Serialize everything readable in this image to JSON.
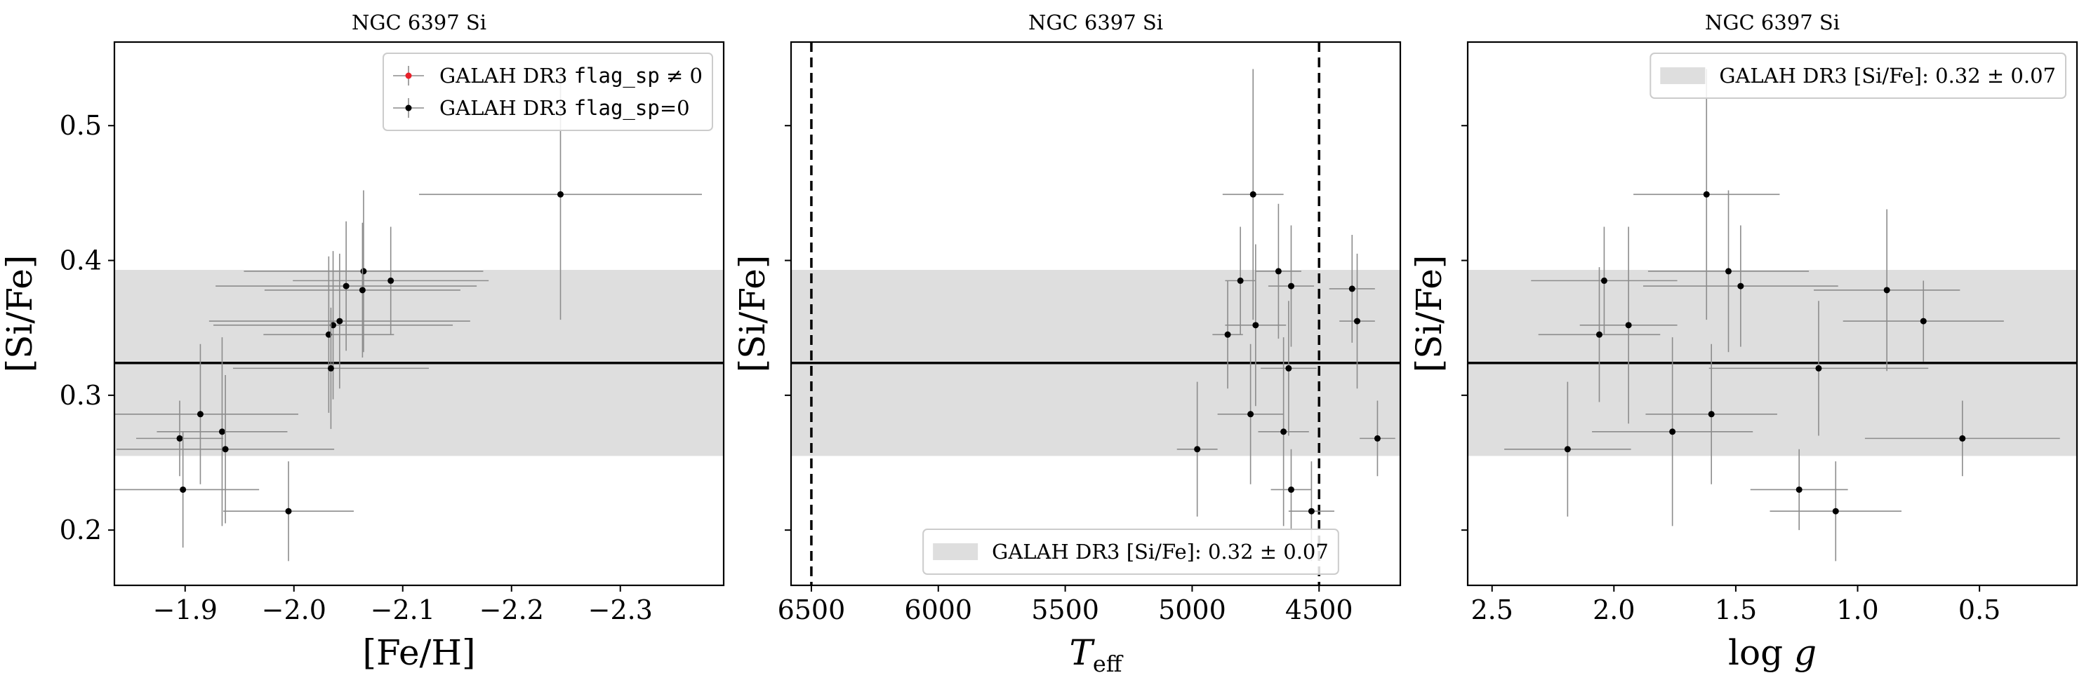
{
  "colors": {
    "band": "#dedede",
    "points": "#000000",
    "errorbars": "#8c8c8c",
    "flagged": "#e8202a"
  },
  "chart_data": [
    {
      "type": "scatter",
      "title": "NGC 6397 Si",
      "xlabel": "[Fe/H]",
      "ylabel": "[Si/Fe]",
      "xlim": [
        -1.835,
        -2.395
      ],
      "ylim": [
        0.159,
        0.562
      ],
      "xticks": [
        -1.9,
        -2.0,
        -2.1,
        -2.2,
        -2.3
      ],
      "xtick_labels": [
        "−1.9",
        "−2.0",
        "−2.1",
        "−2.2",
        "−2.3"
      ],
      "yticks": [
        0.2,
        0.3,
        0.4,
        0.5
      ],
      "ytick_labels": [
        "0.2",
        "0.3",
        "0.4",
        "0.5"
      ],
      "show_ytick_labels": true,
      "mean_line": 0.324,
      "band": [
        0.255,
        0.393
      ],
      "vlines": [],
      "legend": {
        "position": "top-right",
        "entries": [
          {
            "marker": "flagged",
            "parts": [
              [
                "GALAH DR3 ",
                "serif"
              ],
              [
                "flag_sp",
                "mono"
              ],
              [
                " ≠ 0",
                "serif"
              ]
            ]
          },
          {
            "marker": "point",
            "parts": [
              [
                "GALAH DR3 ",
                "serif"
              ],
              [
                "flag_sp",
                "mono"
              ],
              [
                "=0",
                "serif"
              ]
            ]
          }
        ]
      },
      "series": [
        {
          "name": "GALAH DR3 flag_sp=0",
          "points": [
            {
              "x": -2.245,
              "y": 0.449,
              "xerr": 0.13,
              "yerr": 0.093
            },
            {
              "x": -2.064,
              "y": 0.392,
              "xerr": 0.11,
              "yerr": 0.06
            },
            {
              "x": -2.089,
              "y": 0.385,
              "xerr": 0.09,
              "yerr": 0.04
            },
            {
              "x": -2.048,
              "y": 0.381,
              "xerr": 0.12,
              "yerr": 0.048
            },
            {
              "x": -2.063,
              "y": 0.378,
              "xerr": 0.09,
              "yerr": 0.05
            },
            {
              "x": -2.042,
              "y": 0.355,
              "xerr": 0.12,
              "yerr": 0.05
            },
            {
              "x": -2.036,
              "y": 0.352,
              "xerr": 0.11,
              "yerr": 0.055
            },
            {
              "x": -2.032,
              "y": 0.345,
              "xerr": 0.06,
              "yerr": 0.058
            },
            {
              "x": -2.034,
              "y": 0.32,
              "xerr": 0.09,
              "yerr": 0.045
            },
            {
              "x": -1.914,
              "y": 0.286,
              "xerr": 0.09,
              "yerr": 0.052
            },
            {
              "x": -1.934,
              "y": 0.273,
              "xerr": 0.06,
              "yerr": 0.07
            },
            {
              "x": -1.895,
              "y": 0.268,
              "xerr": 0.04,
              "yerr": 0.028
            },
            {
              "x": -1.937,
              "y": 0.26,
              "xerr": 0.1,
              "yerr": 0.055
            },
            {
              "x": -1.898,
              "y": 0.23,
              "xerr": 0.07,
              "yerr": 0.043
            },
            {
              "x": -1.995,
              "y": 0.214,
              "xerr": 0.06,
              "yerr": 0.037
            }
          ]
        }
      ]
    },
    {
      "type": "scatter",
      "title": "NGC 6397 Si",
      "xlabel": "T_eff",
      "ylabel": "[Si/Fe]",
      "xlim": [
        6580,
        4180
      ],
      "ylim": [
        0.159,
        0.562
      ],
      "xticks": [
        6500,
        6000,
        5500,
        5000,
        4500
      ],
      "xtick_labels": [
        "6500",
        "6000",
        "5500",
        "5000",
        "4500"
      ],
      "yticks": [
        0.2,
        0.3,
        0.4,
        0.5
      ],
      "ytick_labels": [
        "0.2",
        "0.3",
        "0.4",
        "0.5"
      ],
      "show_ytick_labels": false,
      "mean_line": 0.324,
      "band": [
        0.255,
        0.393
      ],
      "vlines": [
        6500,
        4500
      ],
      "legend": {
        "position": "bottom-center",
        "entries": [
          {
            "marker": "band",
            "parts": [
              [
                "GALAH DR3 [Si/Fe]:  0.32 ± 0.07",
                "serif"
              ]
            ]
          }
        ]
      },
      "series": [
        {
          "name": "GALAH DR3 flag_sp=0",
          "points": [
            {
              "x": 4760,
              "y": 0.449,
              "xerr": 120,
              "yerr": 0.093
            },
            {
              "x": 4660,
              "y": 0.392,
              "xerr": 90,
              "yerr": 0.05
            },
            {
              "x": 4810,
              "y": 0.385,
              "xerr": 60,
              "yerr": 0.04
            },
            {
              "x": 4610,
              "y": 0.381,
              "xerr": 90,
              "yerr": 0.045
            },
            {
              "x": 4370,
              "y": 0.379,
              "xerr": 90,
              "yerr": 0.04
            },
            {
              "x": 4350,
              "y": 0.355,
              "xerr": 70,
              "yerr": 0.05
            },
            {
              "x": 4750,
              "y": 0.352,
              "xerr": 120,
              "yerr": 0.06
            },
            {
              "x": 4860,
              "y": 0.345,
              "xerr": 60,
              "yerr": 0.04
            },
            {
              "x": 4620,
              "y": 0.32,
              "xerr": 110,
              "yerr": 0.05
            },
            {
              "x": 4770,
              "y": 0.286,
              "xerr": 130,
              "yerr": 0.052
            },
            {
              "x": 4640,
              "y": 0.273,
              "xerr": 100,
              "yerr": 0.07
            },
            {
              "x": 4270,
              "y": 0.268,
              "xerr": 70,
              "yerr": 0.028
            },
            {
              "x": 4980,
              "y": 0.26,
              "xerr": 80,
              "yerr": 0.05
            },
            {
              "x": 4610,
              "y": 0.23,
              "xerr": 80,
              "yerr": 0.03
            },
            {
              "x": 4530,
              "y": 0.214,
              "xerr": 90,
              "yerr": 0.037
            }
          ]
        }
      ]
    },
    {
      "type": "scatter",
      "title": "NGC 6397 Si",
      "xlabel": "log g",
      "ylabel": "[Si/Fe]",
      "xlim": [
        2.6,
        0.1
      ],
      "ylim": [
        0.159,
        0.562
      ],
      "xticks": [
        2.5,
        2.0,
        1.5,
        1.0,
        0.5
      ],
      "xtick_labels": [
        "2.5",
        "2.0",
        "1.5",
        "1.0",
        "0.5"
      ],
      "yticks": [
        0.2,
        0.3,
        0.4,
        0.5
      ],
      "ytick_labels": [
        "0.2",
        "0.3",
        "0.4",
        "0.5"
      ],
      "show_ytick_labels": false,
      "mean_line": 0.324,
      "band": [
        0.255,
        0.393
      ],
      "vlines": [],
      "legend": {
        "position": "top-right",
        "entries": [
          {
            "marker": "band",
            "parts": [
              [
                "GALAH DR3 [Si/Fe]:  0.32 ± 0.07",
                "serif"
              ]
            ]
          }
        ]
      },
      "series": [
        {
          "name": "GALAH DR3 flag_sp=0",
          "points": [
            {
              "x": 1.62,
              "y": 0.449,
              "xerr": 0.3,
              "yerr": 0.093
            },
            {
              "x": 1.53,
              "y": 0.392,
              "xerr": 0.33,
              "yerr": 0.06
            },
            {
              "x": 2.04,
              "y": 0.385,
              "xerr": 0.3,
              "yerr": 0.04
            },
            {
              "x": 1.48,
              "y": 0.381,
              "xerr": 0.4,
              "yerr": 0.045
            },
            {
              "x": 0.88,
              "y": 0.378,
              "xerr": 0.3,
              "yerr": 0.06
            },
            {
              "x": 0.73,
              "y": 0.355,
              "xerr": 0.33,
              "yerr": 0.03
            },
            {
              "x": 1.94,
              "y": 0.352,
              "xerr": 0.2,
              "yerr": 0.073
            },
            {
              "x": 2.06,
              "y": 0.345,
              "xerr": 0.25,
              "yerr": 0.05
            },
            {
              "x": 1.16,
              "y": 0.32,
              "xerr": 0.45,
              "yerr": 0.05
            },
            {
              "x": 1.6,
              "y": 0.286,
              "xerr": 0.27,
              "yerr": 0.052
            },
            {
              "x": 1.76,
              "y": 0.273,
              "xerr": 0.33,
              "yerr": 0.07
            },
            {
              "x": 0.57,
              "y": 0.268,
              "xerr": 0.4,
              "yerr": 0.028
            },
            {
              "x": 2.19,
              "y": 0.26,
              "xerr": 0.26,
              "yerr": 0.05
            },
            {
              "x": 1.24,
              "y": 0.23,
              "xerr": 0.2,
              "yerr": 0.03
            },
            {
              "x": 1.09,
              "y": 0.214,
              "xerr": 0.27,
              "yerr": 0.037
            }
          ]
        }
      ]
    }
  ]
}
